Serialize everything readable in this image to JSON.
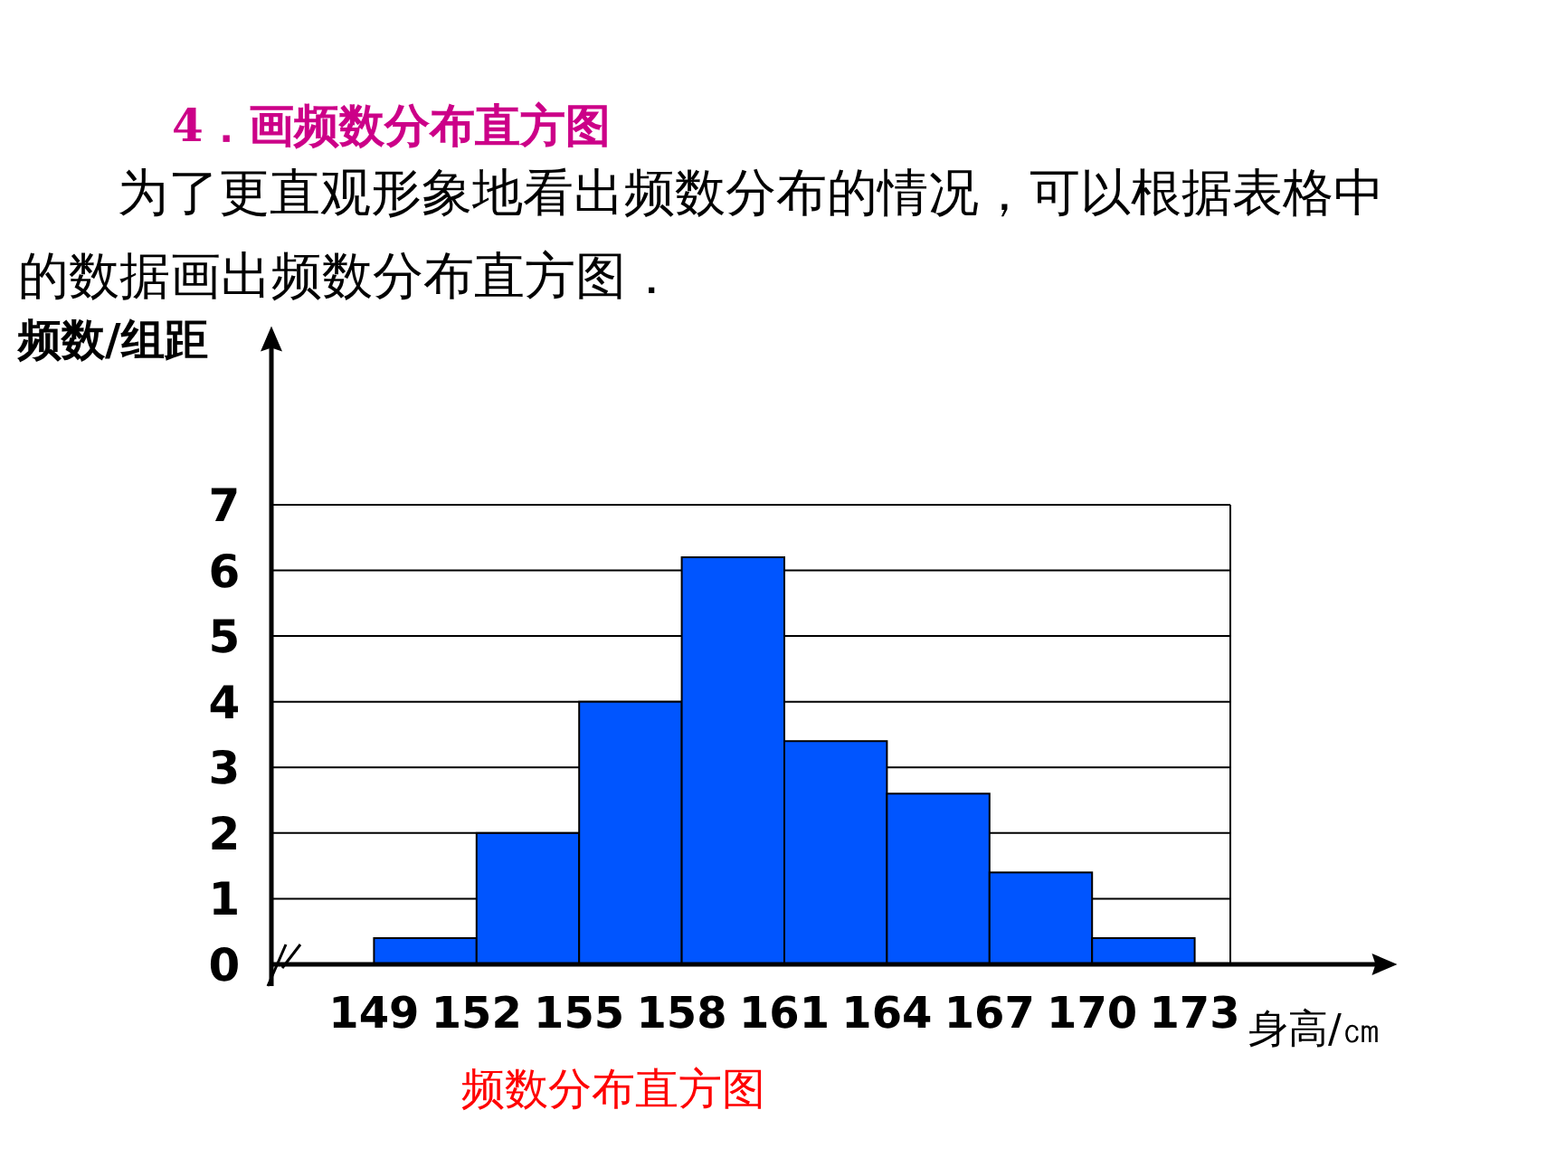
{
  "chart_data": {
    "type": "histogram",
    "title": "4．画频数分布直方图",
    "subtitle": "为了更直观形象地看出频数分布的情况，可以根据表格中的数据画出频数分布直方图．",
    "ylabel": "频数/组距",
    "xlabel": "身高/㎝",
    "annotations": [
      "频数分布直方图"
    ],
    "bins": [
      149,
      152,
      155,
      158,
      161,
      164,
      167,
      170,
      173
    ],
    "values": [
      0.4,
      2,
      4,
      6.2,
      3.4,
      2.6,
      1.4,
      0.4
    ],
    "color": "#0055ff",
    "xlim": [
      146,
      178.5
    ],
    "xticks": [
      149,
      152,
      155,
      158,
      161,
      164,
      167,
      170,
      173
    ],
    "ylim": [
      0,
      9.5
    ],
    "yticks": [
      0,
      1,
      2,
      3,
      4,
      5,
      6,
      7
    ],
    "grid": "y"
  }
}
